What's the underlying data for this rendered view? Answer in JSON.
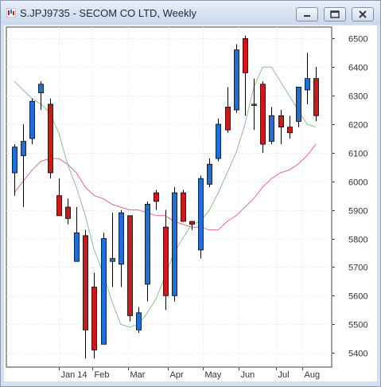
{
  "window": {
    "title": "S.JPJ9735 - SECOM CO LTD, Weekly",
    "icon": "chart-candles-icon",
    "buttons": [
      "minimize-icon",
      "restore-icon",
      "close-icon"
    ]
  },
  "chart_data": {
    "type": "candlestick",
    "title": "",
    "xlabel": "",
    "ylabel": "",
    "ylim": [
      5350,
      6540
    ],
    "grid": true,
    "y_ticks": [
      5400,
      5500,
      5600,
      5700,
      5800,
      5900,
      6000,
      6100,
      6200,
      6300,
      6400,
      6500
    ],
    "x_tick_labels": [
      {
        "label": "Jan 14",
        "week": 5
      },
      {
        "label": "Feb",
        "week": 8.8
      },
      {
        "label": "Mar",
        "week": 12.8
      },
      {
        "label": "Apr",
        "week": 17.3
      },
      {
        "label": "May",
        "week": 21.3
      },
      {
        "label": "Jun",
        "week": 25.3
      },
      {
        "label": "Jul",
        "week": 29.5
      },
      {
        "label": "Aug",
        "week": 32.5
      }
    ],
    "colors": {
      "up": "#1e6fd9",
      "down": "#d01818",
      "ma_short": "#8fbf8f",
      "ma_long": "#e06a8a",
      "grid": "#e6e6e6",
      "axis": "#404040"
    },
    "candles": [
      {
        "o": 6030,
        "h": 6130,
        "l": 5950,
        "c": 6120
      },
      {
        "o": 6090,
        "h": 6200,
        "l": 5910,
        "c": 6140
      },
      {
        "o": 6150,
        "h": 6290,
        "l": 6130,
        "c": 6280
      },
      {
        "o": 6310,
        "h": 6350,
        "l": 6250,
        "c": 6340
      },
      {
        "o": 6270,
        "h": 6290,
        "l": 6010,
        "c": 6030
      },
      {
        "o": 5950,
        "h": 6010,
        "l": 5880,
        "c": 5880
      },
      {
        "o": 5910,
        "h": 5940,
        "l": 5850,
        "c": 5870
      },
      {
        "o": 5720,
        "h": 5910,
        "l": 5720,
        "c": 5820
      },
      {
        "o": 5810,
        "h": 5830,
        "l": 5380,
        "c": 5480
      },
      {
        "o": 5630,
        "h": 5680,
        "l": 5380,
        "c": 5410
      },
      {
        "o": 5430,
        "h": 5820,
        "l": 5430,
        "c": 5800
      },
      {
        "o": 5720,
        "h": 5890,
        "l": 5630,
        "c": 5730
      },
      {
        "o": 5710,
        "h": 5900,
        "l": 5630,
        "c": 5890
      },
      {
        "o": 5880,
        "h": 5880,
        "l": 5510,
        "c": 5530
      },
      {
        "o": 5480,
        "h": 5560,
        "l": 5470,
        "c": 5540
      },
      {
        "o": 5640,
        "h": 5930,
        "l": 5580,
        "c": 5920
      },
      {
        "o": 5960,
        "h": 5970,
        "l": 5900,
        "c": 5930
      },
      {
        "o": 5840,
        "h": 5900,
        "l": 5550,
        "c": 5600
      },
      {
        "o": 5600,
        "h": 5980,
        "l": 5580,
        "c": 5960
      },
      {
        "o": 5960,
        "h": 5970,
        "l": 5860,
        "c": 5860
      },
      {
        "o": 5860,
        "h": 5860,
        "l": 5830,
        "c": 5850
      },
      {
        "o": 5760,
        "h": 6020,
        "l": 5730,
        "c": 6010
      },
      {
        "o": 5990,
        "h": 6080,
        "l": 5980,
        "c": 6060
      },
      {
        "o": 6080,
        "h": 6220,
        "l": 6070,
        "c": 6200
      },
      {
        "o": 6260,
        "h": 6330,
        "l": 6170,
        "c": 6180
      },
      {
        "o": 6250,
        "h": 6480,
        "l": 6240,
        "c": 6460
      },
      {
        "o": 6500,
        "h": 6510,
        "l": 6230,
        "c": 6380
      },
      {
        "o": 6270,
        "h": 6360,
        "l": 6180,
        "c": 6270
      },
      {
        "o": 6340,
        "h": 6350,
        "l": 6100,
        "c": 6130
      },
      {
        "o": 6140,
        "h": 6260,
        "l": 6130,
        "c": 6230
      },
      {
        "o": 6230,
        "h": 6250,
        "l": 6130,
        "c": 6190
      },
      {
        "o": 6190,
        "h": 6230,
        "l": 6150,
        "c": 6170
      },
      {
        "o": 6210,
        "h": 6330,
        "l": 6190,
        "c": 6330
      },
      {
        "o": 6320,
        "h": 6450,
        "l": 6270,
        "c": 6360
      },
      {
        "o": 6360,
        "h": 6400,
        "l": 6210,
        "c": 6230
      }
    ],
    "ma_short": [
      6350,
      6320,
      6290,
      6270,
      6240,
      6170,
      6060,
      5980,
      5880,
      5760,
      5680,
      5580,
      5500,
      5490,
      5500,
      5540,
      5590,
      5670,
      5750,
      5800,
      5850,
      5860,
      5900,
      5960,
      6030,
      6100,
      6200,
      6330,
      6400,
      6400,
      6350,
      6300,
      6250,
      6200,
      6190
    ],
    "ma_long": [
      5960,
      6000,
      6040,
      6070,
      6080,
      6080,
      6060,
      6030,
      5980,
      5950,
      5940,
      5920,
      5910,
      5900,
      5900,
      5890,
      5880,
      5880,
      5860,
      5850,
      5840,
      5840,
      5830,
      5830,
      5860,
      5880,
      5910,
      5940,
      5980,
      6010,
      6030,
      6040,
      6060,
      6090,
      6130
    ]
  }
}
